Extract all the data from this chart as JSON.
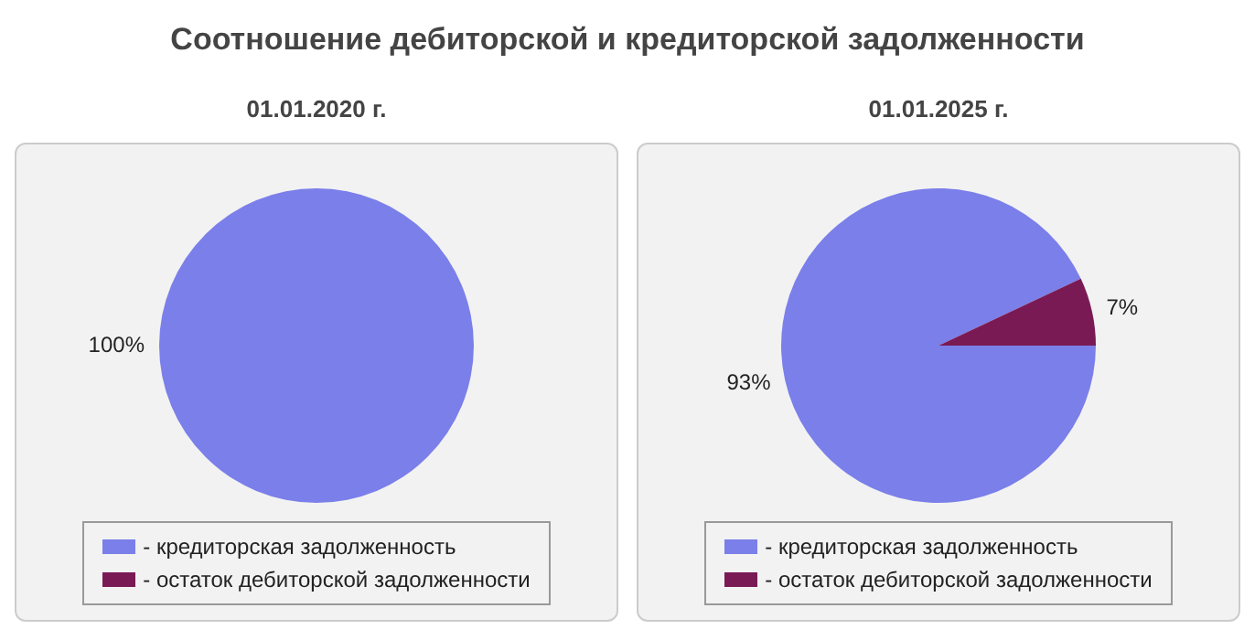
{
  "chart_data": [
    {
      "type": "pie",
      "title": "Соотношение дебиторской и кредиторской задолженности",
      "subtitle": "01.01.2020 г.",
      "categories": [
        "- кредиторская задолженность",
        "- остаток дебиторской задолженности"
      ],
      "values": [
        100,
        0
      ],
      "colors": [
        "#7b7fe9",
        "#7a1a55"
      ],
      "value_labels": [
        "100%",
        null
      ],
      "legend": "bottom"
    },
    {
      "type": "pie",
      "subtitle": "01.01.2025 г.",
      "categories": [
        "- кредиторская задолженность",
        "- остаток дебиторской задолженности"
      ],
      "values": [
        93,
        7
      ],
      "colors": [
        "#7b7fe9",
        "#7a1a55"
      ],
      "value_labels": [
        "93%",
        "7%"
      ],
      "legend": "bottom"
    }
  ]
}
